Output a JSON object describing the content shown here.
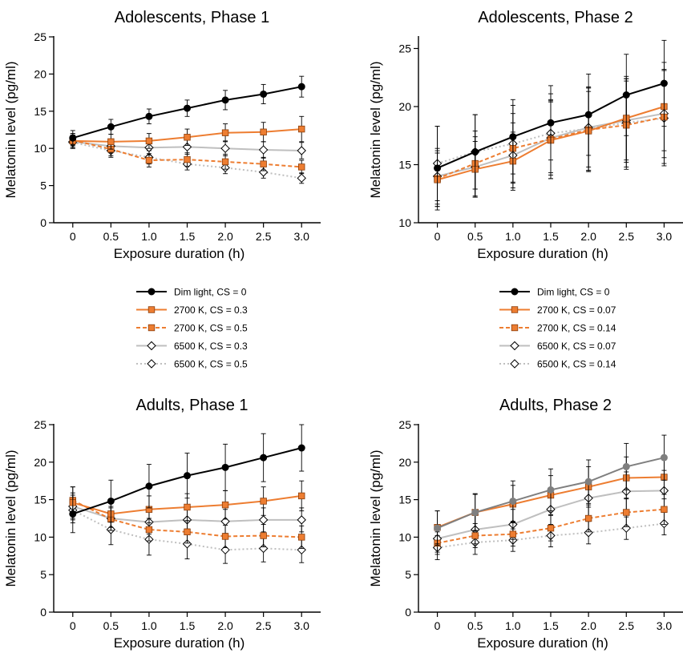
{
  "style": {
    "colors": {
      "black": "#000000",
      "orange": "#ED7D31",
      "gray": "#BFBFBF",
      "dark_gray": "#7F7F7F"
    },
    "marker_names": [
      "filled-circle",
      "filled-square",
      "open-diamond"
    ]
  },
  "legends": [
    {
      "entries": [
        {
          "label": "Dim light, CS = 0",
          "color": "#000000",
          "dash": "solid",
          "marker": "circle"
        },
        {
          "label": "2700 K, CS = 0.3",
          "color": "#ED7D31",
          "dash": "solid",
          "marker": "square"
        },
        {
          "label": "2700 K, CS = 0.5",
          "color": "#ED7D31",
          "dash": "dashed",
          "marker": "square"
        },
        {
          "label": "6500 K, CS = 0.3",
          "color": "#BFBFBF",
          "dash": "solid",
          "marker": "diamond"
        },
        {
          "label": "6500 K, CS = 0.5",
          "color": "#BFBFBF",
          "dash": "dotted",
          "marker": "diamond"
        }
      ]
    },
    {
      "entries": [
        {
          "label": "Dim light, CS = 0",
          "color": "#000000",
          "dash": "solid",
          "marker": "circle"
        },
        {
          "label": "2700 K, CS = 0.07",
          "color": "#ED7D31",
          "dash": "solid",
          "marker": "square"
        },
        {
          "label": "2700 K, CS = 0.14",
          "color": "#ED7D31",
          "dash": "dashed",
          "marker": "square"
        },
        {
          "label": "6500 K, CS = 0.07",
          "color": "#BFBFBF",
          "dash": "solid",
          "marker": "diamond"
        },
        {
          "label": "6500 K, CS = 0.14",
          "color": "#BFBFBF",
          "dash": "dotted",
          "marker": "diamond"
        }
      ]
    }
  ],
  "chart_data": [
    {
      "type": "line",
      "title": "Adolescents, Phase 1",
      "xlabel": "Exposure duration (h)",
      "ylabel": "Melatonin level (pg/ml)",
      "x": [
        0,
        0.5,
        1.0,
        1.5,
        2.0,
        2.5,
        3.0
      ],
      "x_tick_labels": [
        "0",
        "0.5",
        "1.0",
        "1.5",
        "2.0",
        "2.5",
        "3.0"
      ],
      "xlim": [
        -0.25,
        3.25
      ],
      "ylim": [
        0,
        25
      ],
      "y_ticks": [
        0,
        5,
        10,
        15,
        20,
        25
      ],
      "series": [
        {
          "name": "Dim light, CS = 0",
          "color": "#000000",
          "dash": "solid",
          "marker": "circle",
          "values": [
            11.4,
            12.9,
            14.3,
            15.4,
            16.5,
            17.3,
            18.3
          ],
          "err": [
            1.0,
            1.0,
            1.0,
            1.1,
            1.3,
            1.3,
            1.4
          ]
        },
        {
          "name": "2700 K, CS = 0.3",
          "color": "#ED7D31",
          "dash": "solid",
          "marker": "square",
          "values": [
            11.0,
            10.9,
            11.0,
            11.5,
            12.1,
            12.2,
            12.6
          ],
          "err": [
            1.0,
            1.0,
            1.0,
            1.1,
            1.2,
            1.3,
            1.7
          ]
        },
        {
          "name": "2700 K, CS = 0.5",
          "color": "#ED7D31",
          "dash": "dashed",
          "marker": "square",
          "values": [
            11.1,
            9.9,
            8.4,
            8.5,
            8.2,
            7.9,
            7.5
          ],
          "err": [
            0.9,
            0.9,
            0.9,
            0.9,
            1.0,
            0.9,
            0.9
          ]
        },
        {
          "name": "6500 K, CS = 0.3",
          "color": "#BFBFBF",
          "dash": "solid",
          "marker": "diamond",
          "values": [
            10.9,
            10.3,
            10.1,
            10.2,
            10.0,
            9.8,
            9.7
          ],
          "err": [
            0.9,
            0.9,
            1.0,
            1.0,
            1.0,
            1.1,
            1.1
          ]
        },
        {
          "name": "6500 K, CS = 0.5",
          "color": "#BFBFBF",
          "dash": "dotted",
          "marker": "diamond",
          "values": [
            10.8,
            9.7,
            8.8,
            7.9,
            7.4,
            6.8,
            6.0
          ],
          "err": [
            0.8,
            0.9,
            0.9,
            0.8,
            0.8,
            0.8,
            0.7
          ]
        }
      ]
    },
    {
      "type": "line",
      "title": "Adolescents, Phase 2",
      "xlabel": "Exposure duration (h)",
      "ylabel": "Melatonin level (pg/ml)",
      "x": [
        0,
        0.5,
        1.0,
        1.5,
        2.0,
        2.5,
        3.0
      ],
      "x_tick_labels": [
        "0",
        "0.5",
        "1.0",
        "1.5",
        "2.0",
        "2.5",
        "3.0"
      ],
      "xlim": [
        -0.25,
        3.25
      ],
      "ylim": [
        10,
        26
      ],
      "y_ticks": [
        10,
        15,
        20,
        25
      ],
      "series": [
        {
          "name": "Dim light, CS = 0",
          "color": "#000000",
          "dash": "solid",
          "marker": "circle",
          "values": [
            14.7,
            16.1,
            17.4,
            18.6,
            19.3,
            21.0,
            22.0
          ],
          "err": [
            3.6,
            3.2,
            3.2,
            3.2,
            3.5,
            3.5,
            3.7
          ]
        },
        {
          "name": "2700 K, CS = 0.07",
          "color": "#ED7D31",
          "dash": "solid",
          "marker": "square",
          "values": [
            13.7,
            14.6,
            15.3,
            17.1,
            17.9,
            19.0,
            20.0
          ],
          "err": [
            2.3,
            2.4,
            2.5,
            3.3,
            3.4,
            3.6,
            3.8
          ]
        },
        {
          "name": "2700 K, CS = 0.14",
          "color": "#ED7D31",
          "dash": "dashed",
          "marker": "square",
          "values": [
            13.8,
            15.1,
            16.4,
            17.2,
            18.0,
            18.4,
            19.1
          ],
          "err": [
            2.4,
            2.8,
            3.0,
            3.4,
            3.6,
            3.8,
            4.0
          ]
        },
        {
          "name": "6500 K, CS = 0.07",
          "color": "#BFBFBF",
          "dash": "solid",
          "marker": "diamond",
          "values": [
            14.0,
            14.8,
            15.8,
            17.3,
            18.2,
            18.8,
            19.4
          ],
          "err": [
            2.4,
            2.6,
            2.8,
            3.2,
            3.4,
            3.6,
            3.8
          ]
        },
        {
          "name": "6500 K, CS = 0.14",
          "color": "#BFBFBF",
          "dash": "dotted",
          "marker": "diamond",
          "values": [
            15.1,
            16.1,
            16.8,
            17.7,
            18.1,
            18.6,
            19.0
          ],
          "err": [
            3.2,
            3.2,
            3.3,
            3.4,
            3.6,
            3.8,
            4.1
          ]
        }
      ]
    },
    {
      "type": "line",
      "title": "Adults, Phase 1",
      "xlabel": "Exposure duration (h)",
      "ylabel": "Melatonin level (pg/ml)",
      "x": [
        0,
        0.5,
        1.0,
        1.5,
        2.0,
        2.5,
        3.0
      ],
      "x_tick_labels": [
        "0",
        "0.5",
        "1.0",
        "1.5",
        "2.0",
        "2.5",
        "3.0"
      ],
      "xlim": [
        -0.25,
        3.25
      ],
      "ylim": [
        0,
        25
      ],
      "y_ticks": [
        0,
        5,
        10,
        15,
        20,
        25
      ],
      "series": [
        {
          "name": "Dim light, CS = 0",
          "color": "#000000",
          "dash": "solid",
          "marker": "circle",
          "values": [
            13.1,
            14.8,
            16.8,
            18.2,
            19.3,
            20.6,
            21.9
          ],
          "err": [
            2.5,
            2.8,
            2.9,
            3.0,
            3.1,
            3.2,
            3.1
          ]
        },
        {
          "name": "2700 K, CS = 0.3",
          "color": "#ED7D31",
          "dash": "solid",
          "marker": "square",
          "values": [
            14.6,
            13.1,
            13.7,
            14.0,
            14.3,
            14.8,
            15.5
          ],
          "err": [
            2.1,
            1.8,
            1.8,
            1.8,
            1.9,
            1.9,
            2.0
          ]
        },
        {
          "name": "2700 K, CS = 0.5",
          "color": "#ED7D31",
          "dash": "dashed",
          "marker": "square",
          "values": [
            14.9,
            12.4,
            11.0,
            10.7,
            10.1,
            10.2,
            10.0
          ],
          "err": [
            1.8,
            1.5,
            1.5,
            1.5,
            1.5,
            1.5,
            1.5
          ]
        },
        {
          "name": "6500 K, CS = 0.3",
          "color": "#BFBFBF",
          "dash": "solid",
          "marker": "diamond",
          "values": [
            14.1,
            12.5,
            12.0,
            12.3,
            12.1,
            12.3,
            12.3
          ],
          "err": [
            1.8,
            1.6,
            1.6,
            1.6,
            1.6,
            1.6,
            1.6
          ]
        },
        {
          "name": "6500 K, CS = 0.5",
          "color": "#BFBFBF",
          "dash": "dotted",
          "marker": "diamond",
          "values": [
            13.6,
            11.0,
            9.7,
            9.1,
            8.3,
            8.5,
            8.3
          ],
          "err": [
            1.7,
            2.0,
            2.1,
            2.0,
            1.8,
            1.8,
            1.7
          ]
        }
      ]
    },
    {
      "type": "line",
      "title": "Adults, Phase 2",
      "xlabel": "Exposure duration (h)",
      "ylabel": "Melatonin level (pg/ml)",
      "x": [
        0,
        0.5,
        1.0,
        1.5,
        2.0,
        2.5,
        3.0
      ],
      "x_tick_labels": [
        "0",
        "0.5",
        "1.0",
        "1.5",
        "2.0",
        "2.5",
        "3.0"
      ],
      "xlim": [
        -0.25,
        3.25
      ],
      "ylim": [
        0,
        25
      ],
      "y_ticks": [
        0,
        5,
        10,
        15,
        20,
        25
      ],
      "series": [
        {
          "name": "Dim light, CS = 0",
          "color": "#7F7F7F",
          "dash": "solid",
          "marker": "circle",
          "values": [
            11.2,
            13.3,
            14.8,
            16.3,
            17.4,
            19.4,
            20.6
          ],
          "err": [
            2.3,
            2.5,
            2.7,
            2.8,
            2.9,
            3.1,
            3.0
          ]
        },
        {
          "name": "2700 K, CS = 0.07",
          "color": "#ED7D31",
          "dash": "solid",
          "marker": "square",
          "values": [
            11.3,
            13.3,
            14.4,
            15.6,
            16.7,
            17.9,
            18.0
          ],
          "err": [
            2.2,
            2.4,
            2.5,
            2.6,
            2.7,
            2.8,
            2.9
          ]
        },
        {
          "name": "2700 K, CS = 0.14",
          "color": "#ED7D31",
          "dash": "dashed",
          "marker": "square",
          "values": [
            9.2,
            10.2,
            10.4,
            11.2,
            12.5,
            13.3,
            13.7
          ],
          "err": [
            1.5,
            1.6,
            1.6,
            1.7,
            1.8,
            1.9,
            2.0
          ]
        },
        {
          "name": "6500 K, CS = 0.07",
          "color": "#BFBFBF",
          "dash": "solid",
          "marker": "diamond",
          "values": [
            9.8,
            11.0,
            11.7,
            13.7,
            15.2,
            16.1,
            16.2
          ],
          "err": [
            1.8,
            1.9,
            2.0,
            2.2,
            2.4,
            2.6,
            2.7
          ]
        },
        {
          "name": "6500 K, CS = 0.14",
          "color": "#BFBFBF",
          "dash": "dotted",
          "marker": "diamond",
          "values": [
            8.6,
            9.3,
            9.6,
            10.2,
            10.6,
            11.2,
            11.8
          ],
          "err": [
            1.6,
            1.6,
            1.5,
            1.5,
            1.5,
            1.5,
            1.5
          ]
        }
      ]
    }
  ]
}
